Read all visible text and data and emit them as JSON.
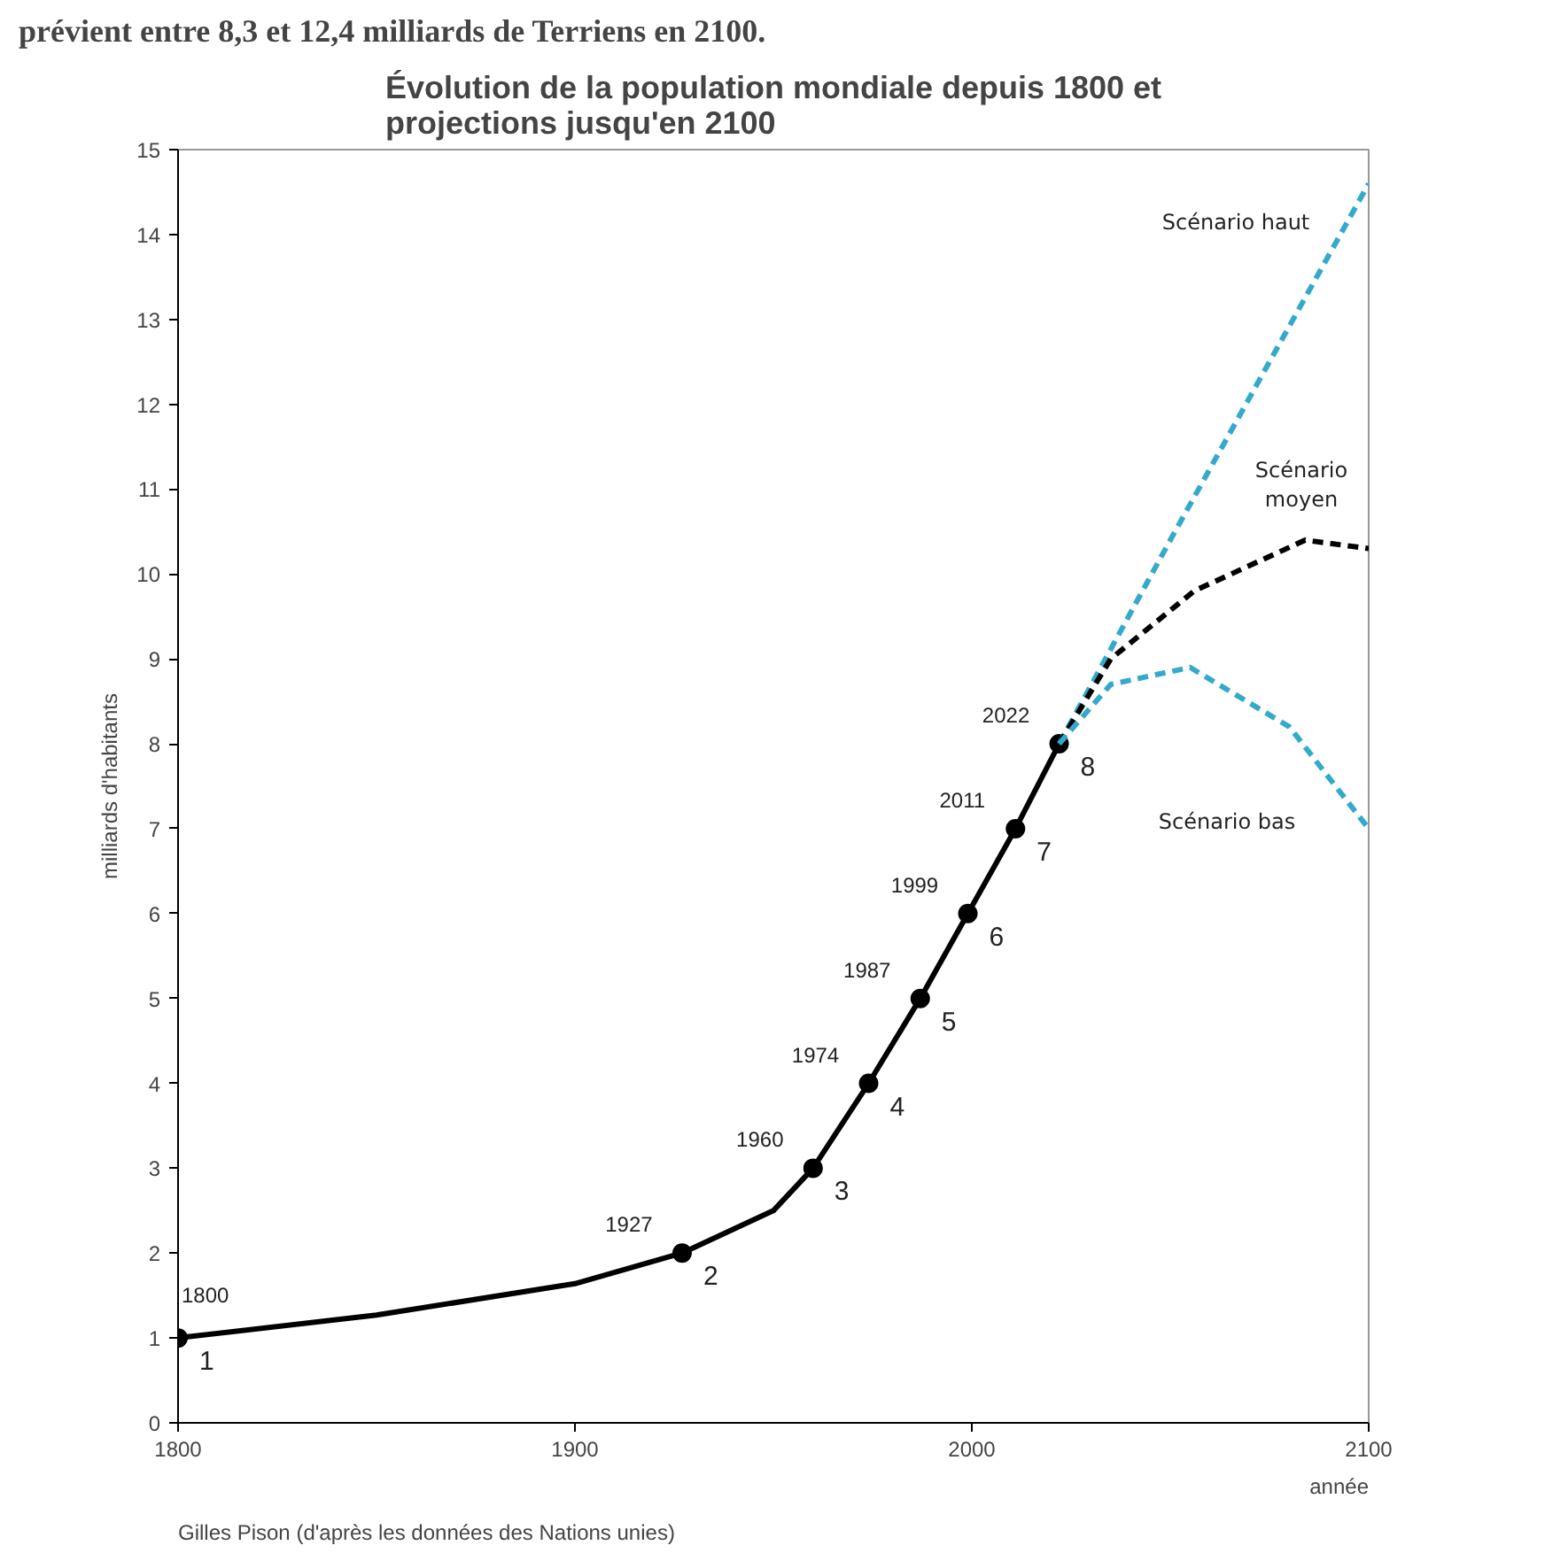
{
  "chart_data": {
    "type": "line",
    "title": "Évolution de la population mondiale depuis 1800 et projections jusqu'en 2100",
    "xlabel": "année",
    "ylabel": "milliards d'habitants",
    "xlim": [
      1800,
      2100
    ],
    "xticks": [
      1800,
      1900,
      2000,
      2100
    ],
    "ylim": [
      0,
      15
    ],
    "yticks": [
      0,
      1,
      2,
      3,
      4,
      5,
      6,
      7,
      8,
      9,
      10,
      11,
      12,
      13,
      14,
      15
    ],
    "grid": false,
    "series": [
      {
        "type": "line",
        "color": "#000000",
        "line_style": "solid",
        "marker": "none",
        "x": [
          1800,
          1850,
          1900,
          1927,
          1950,
          1955,
          1960,
          1974,
          1987,
          1999,
          2011,
          2022
        ],
        "values": [
          1,
          1.27,
          1.64,
          2,
          2.5,
          2.75,
          3,
          4,
          5,
          6,
          7,
          8
        ]
      },
      {
        "type": "scatter",
        "color": "#000000",
        "marker": "circle",
        "x": [
          1800,
          1927,
          1960,
          1974,
          1987,
          1999,
          2011,
          2022
        ],
        "values": [
          1,
          2,
          3,
          4,
          5,
          6,
          7,
          8
        ],
        "value_labels": [
          "1",
          "2",
          "3",
          "4",
          "5",
          "6",
          "7",
          "8"
        ]
      },
      {
        "type": "line",
        "name": "Scénario haut",
        "color": "#33aacc",
        "line_style": "dashed",
        "marker": "none",
        "x": [
          2022,
          2050,
          2100
        ],
        "values": [
          8,
          10.4,
          14.6
        ]
      },
      {
        "type": "line",
        "name": "Scénario moyen",
        "color": "#000000",
        "line_style": "dashed",
        "marker": "none",
        "x": [
          2022,
          2035,
          2056,
          2084,
          2100
        ],
        "values": [
          8,
          9.0,
          9.8,
          10.4,
          10.3
        ]
      },
      {
        "type": "line",
        "name": "Scénario bas",
        "color": "#33aacc",
        "line_style": "dashed",
        "marker": "none",
        "x": [
          2022,
          2035,
          2055,
          2080,
          2100
        ],
        "values": [
          8,
          8.7,
          8.9,
          8.2,
          7.0
        ]
      }
    ],
    "annotations": [
      {
        "text": "1800",
        "x": 1800,
        "y": 1
      },
      {
        "text": "1927",
        "x": 1927,
        "y": 2
      },
      {
        "text": "1960",
        "x": 1960,
        "y": 3
      },
      {
        "text": "1974",
        "x": 1974,
        "y": 4
      },
      {
        "text": "1987",
        "x": 1987,
        "y": 5
      },
      {
        "text": "1999",
        "x": 1999,
        "y": 6
      },
      {
        "text": "2011",
        "x": 2011,
        "y": 7
      },
      {
        "text": "2022",
        "x": 2022,
        "y": 8
      },
      "Gilles Pison (d'après les données des Nations unies)",
      "prévient entre 8,3 et 12,4 milliards de Terriens en 2100."
    ]
  }
}
